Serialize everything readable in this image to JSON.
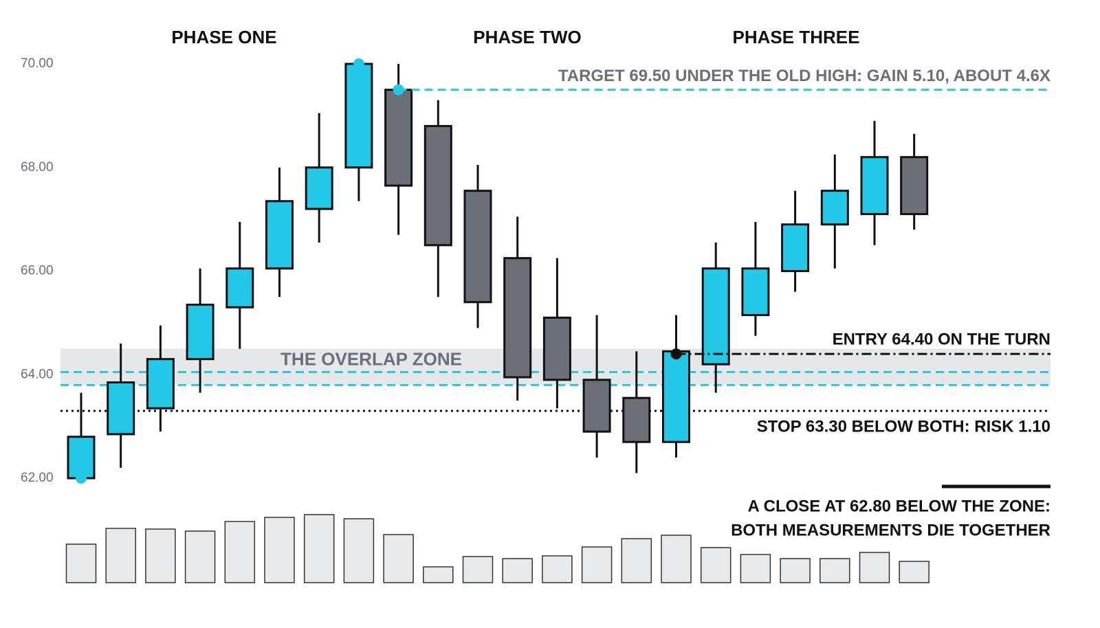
{
  "chart_data": {
    "type": "candlestick",
    "phases": [
      "PHASE ONE",
      "PHASE TWO",
      "PHASE THREE"
    ],
    "open": [
      62.0,
      62.85,
      63.35,
      64.3,
      65.3,
      66.05,
      67.2,
      68.0,
      69.5,
      68.8,
      67.55,
      66.25,
      65.1,
      63.9,
      63.55,
      62.7,
      64.2,
      65.15,
      66.0,
      66.9,
      67.1,
      68.2
    ],
    "high": [
      63.65,
      64.6,
      64.95,
      66.05,
      66.95,
      68.0,
      69.05,
      70.0,
      70.0,
      69.3,
      68.05,
      67.05,
      66.25,
      65.15,
      64.45,
      65.15,
      66.55,
      66.95,
      67.55,
      68.25,
      68.9,
      68.65
    ],
    "low": [
      62.0,
      62.2,
      62.9,
      63.65,
      64.5,
      65.5,
      66.55,
      67.35,
      66.7,
      65.5,
      64.9,
      63.5,
      63.35,
      62.4,
      62.1,
      62.4,
      63.65,
      64.75,
      65.6,
      66.05,
      66.5,
      66.8
    ],
    "close": [
      62.8,
      63.85,
      64.3,
      65.35,
      66.05,
      67.35,
      68.0,
      70.0,
      67.65,
      66.5,
      65.4,
      63.95,
      63.9,
      62.9,
      62.7,
      64.45,
      66.05,
      66.05,
      66.9,
      67.55,
      68.2,
      67.1
    ],
    "up_color": "#22c8e6",
    "down_color": "#6b6f78",
    "volume": [
      56,
      79,
      78,
      75,
      89,
      95,
      99,
      93,
      70,
      23,
      38,
      35,
      39,
      52,
      64,
      69,
      51,
      41,
      35,
      35,
      44,
      31
    ],
    "volume_color": "#e8e9eb",
    "ylim": [
      62,
      70
    ],
    "yticks": [
      {
        "value": 62,
        "label": "62.00"
      },
      {
        "value": 64,
        "label": "64.00"
      },
      {
        "value": 66,
        "label": "66.00"
      },
      {
        "value": 68,
        "label": "68.00"
      },
      {
        "value": 70,
        "label": "70.00"
      }
    ],
    "target": {
      "label": "TARGET 69.50 UNDER THE OLD HIGH: GAIN 5.10, ABOUT 4.6X",
      "value": 69.5,
      "color": "#22c8e6"
    },
    "entry": {
      "label": "ENTRY 64.40 ON THE TURN",
      "value": 64.4,
      "color": "#111111"
    },
    "stop": {
      "label": "STOP 63.30 BELOW BOTH: RISK 1.10",
      "value": 63.3,
      "color": "#111111"
    },
    "zone": {
      "label": "THE OVERLAP ZONE",
      "range": [
        63.8,
        64.5
      ],
      "lines": [
        64.05,
        63.8
      ],
      "color": "#e6e7e9",
      "line_color": "#22c8e6"
    },
    "note": [
      "A CLOSE AT 62.80 BELOW THE ZONE:",
      "BOTH MEASUREMENTS DIE TOGETHER"
    ]
  }
}
